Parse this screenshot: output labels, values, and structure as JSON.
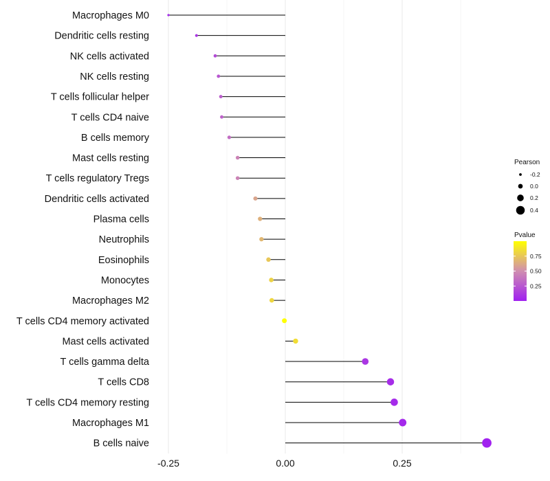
{
  "chart_data": {
    "type": "scatter",
    "subtype": "lollipop",
    "title": "",
    "xlabel": "",
    "ylabel": "",
    "xlim": [
      -0.25,
      0.45
    ],
    "xticks": [
      -0.25,
      0.0,
      0.25
    ],
    "xtick_labels": [
      "-0.25",
      "0.00",
      "0.25"
    ],
    "grid": "vertical",
    "categories": [
      "Macrophages M0",
      "Dendritic cells resting",
      "NK cells activated",
      "NK cells resting",
      "T cells follicular helper",
      "T cells CD4 naive",
      "B cells memory",
      "Mast cells resting",
      "T cells regulatory  Tregs ",
      "Dendritic cells activated",
      "Plasma cells",
      "Neutrophils",
      "Eosinophils",
      "Monocytes",
      "Macrophages M2",
      "T cells CD4 memory activated",
      "Mast cells activated",
      "T cells gamma delta",
      "T cells CD8",
      "T cells CD4 memory resting",
      "Macrophages M1",
      "B cells naive"
    ],
    "pearson": [
      -0.25,
      -0.19,
      -0.15,
      -0.143,
      -0.138,
      -0.136,
      -0.12,
      -0.102,
      -0.102,
      -0.064,
      -0.054,
      -0.051,
      -0.036,
      -0.03,
      -0.029,
      -0.002,
      0.022,
      0.171,
      0.225,
      0.233,
      0.251,
      0.431
    ],
    "pvalue": [
      0.03,
      0.1,
      0.2,
      0.25,
      0.28,
      0.3,
      0.35,
      0.45,
      0.45,
      0.6,
      0.65,
      0.68,
      0.75,
      0.8,
      0.82,
      1.0,
      0.85,
      0.1,
      0.06,
      0.05,
      0.04,
      0.01
    ],
    "legend": {
      "position": "right",
      "size": {
        "title": "Pearson",
        "labels": [
          "-0.2",
          "0.0",
          "0.2",
          "0.4"
        ],
        "values": [
          -0.2,
          0.0,
          0.2,
          0.4
        ]
      },
      "color": {
        "title": "Pvalue",
        "labels": [
          "0.75",
          "0.50",
          "0.25"
        ],
        "values": [
          0.75,
          0.5,
          0.25
        ],
        "range": [
          0.0,
          1.0
        ],
        "colors": [
          "#a020f0",
          "#ffff00"
        ]
      }
    }
  }
}
